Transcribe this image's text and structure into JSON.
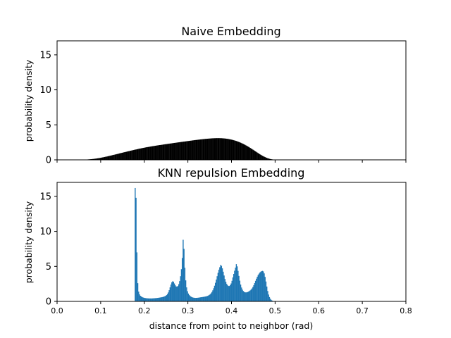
{
  "chart_data": [
    {
      "type": "bar",
      "title": "Naive Embedding",
      "xlabel": "",
      "ylabel": "probability density",
      "xlim": [
        0.0,
        0.8
      ],
      "ylim": [
        0,
        17
      ],
      "yticks": [
        0,
        5,
        10,
        15
      ],
      "xticks": [
        0.0,
        0.1,
        0.2,
        0.3,
        0.4,
        0.5,
        0.6,
        0.7,
        0.8
      ],
      "xtick_labels_visible": false,
      "grid": false,
      "bar_color": "#000000",
      "bin_width": 0.002,
      "x_start": 0.0,
      "values": [
        0,
        0,
        0,
        0,
        0,
        0,
        0,
        0,
        0,
        0,
        0,
        0,
        0,
        0,
        0,
        0,
        0,
        0,
        0,
        0,
        0,
        0,
        0,
        0.01,
        0.01,
        0.01,
        0.02,
        0.02,
        0.03,
        0.03,
        0.03,
        0.04,
        0.04,
        0.05,
        0.05,
        0.06,
        0.07,
        0.08,
        0.09,
        0.1,
        0.12,
        0.13,
        0.15,
        0.16,
        0.18,
        0.2,
        0.22,
        0.24,
        0.26,
        0.28,
        0.31,
        0.33,
        0.36,
        0.38,
        0.41,
        0.44,
        0.46,
        0.49,
        0.52,
        0.55,
        0.58,
        0.61,
        0.64,
        0.67,
        0.7,
        0.73,
        0.76,
        0.79,
        0.82,
        0.85,
        0.88,
        0.92,
        0.95,
        0.98,
        1.01,
        1.04,
        1.07,
        1.1,
        1.13,
        1.16,
        1.19,
        1.22,
        1.25,
        1.28,
        1.31,
        1.34,
        1.37,
        1.4,
        1.43,
        1.46,
        1.48,
        1.51,
        1.54,
        1.57,
        1.6,
        1.62,
        1.65,
        1.67,
        1.7,
        1.72,
        1.75,
        1.77,
        1.8,
        1.82,
        1.84,
        1.86,
        1.88,
        1.91,
        1.93,
        1.95,
        1.97,
        1.99,
        2.01,
        2.03,
        2.05,
        2.07,
        2.09,
        2.11,
        2.12,
        2.14,
        2.16,
        2.18,
        2.2,
        2.22,
        2.24,
        2.25,
        2.27,
        2.29,
        2.31,
        2.33,
        2.34,
        2.36,
        2.38,
        2.4,
        2.42,
        2.43,
        2.45,
        2.47,
        2.49,
        2.5,
        2.52,
        2.54,
        2.56,
        2.57,
        2.59,
        2.61,
        2.62,
        2.64,
        2.66,
        2.68,
        2.69,
        2.71,
        2.73,
        2.74,
        2.76,
        2.78,
        2.79,
        2.81,
        2.83,
        2.84,
        2.86,
        2.87,
        2.89,
        2.9,
        2.92,
        2.93,
        2.95,
        2.96,
        2.97,
        2.99,
        3.0,
        3.01,
        3.02,
        3.03,
        3.04,
        3.05,
        3.06,
        3.07,
        3.08,
        3.08,
        3.09,
        3.09,
        3.1,
        3.1,
        3.1,
        3.1,
        3.1,
        3.09,
        3.09,
        3.08,
        3.07,
        3.06,
        3.05,
        3.03,
        3.02,
        3.0,
        2.98,
        2.95,
        2.93,
        2.9,
        2.87,
        2.84,
        2.8,
        2.77,
        2.73,
        2.69,
        2.65,
        2.6,
        2.55,
        2.5,
        2.45,
        2.39,
        2.33,
        2.27,
        2.21,
        2.14,
        2.07,
        2.0,
        1.93,
        1.86,
        1.78,
        1.7,
        1.62,
        1.54,
        1.46,
        1.38,
        1.29,
        1.21,
        1.13,
        1.04,
        0.96,
        0.88,
        0.8,
        0.72,
        0.65,
        0.58,
        0.51,
        0.45,
        0.39,
        0.33,
        0.28,
        0.23,
        0.19,
        0.15,
        0.12,
        0.09,
        0.07,
        0.05,
        0.04,
        0.03,
        0.02,
        0.01,
        0.01,
        0,
        0,
        0,
        0,
        0,
        0,
        0,
        0,
        0,
        0,
        0,
        0,
        0,
        0,
        0,
        0,
        0,
        0,
        0,
        0,
        0,
        0,
        0,
        0,
        0,
        0,
        0,
        0,
        0,
        0,
        0,
        0,
        0,
        0,
        0,
        0,
        0,
        0,
        0,
        0,
        0,
        0,
        0,
        0,
        0,
        0,
        0,
        0,
        0,
        0,
        0,
        0,
        0,
        0,
        0,
        0,
        0,
        0,
        0,
        0,
        0,
        0,
        0,
        0,
        0,
        0,
        0,
        0,
        0,
        0,
        0,
        0,
        0,
        0,
        0,
        0,
        0,
        0,
        0,
        0,
        0,
        0,
        0,
        0,
        0,
        0,
        0,
        0,
        0,
        0,
        0,
        0,
        0,
        0,
        0,
        0,
        0,
        0,
        0,
        0,
        0,
        0,
        0,
        0,
        0,
        0,
        0,
        0,
        0,
        0,
        0,
        0,
        0,
        0,
        0,
        0,
        0,
        0,
        0,
        0,
        0,
        0,
        0,
        0,
        0,
        0,
        0,
        0,
        0,
        0,
        0,
        0
      ]
    },
    {
      "type": "bar",
      "title": "KNN repulsion Embedding",
      "xlabel": "distance from point to neighbor (rad)",
      "ylabel": "probability density",
      "xlim": [
        0.0,
        0.8
      ],
      "ylim": [
        0,
        17
      ],
      "yticks": [
        0,
        5,
        10,
        15
      ],
      "xticks": [
        0.0,
        0.1,
        0.2,
        0.3,
        0.4,
        0.5,
        0.6,
        0.7,
        0.8
      ],
      "xtick_labels": [
        "0.0",
        "0.1",
        "0.2",
        "0.3",
        "0.4",
        "0.5",
        "0.6",
        "0.7",
        "0.8"
      ],
      "grid": false,
      "bar_color": "#1f77b4",
      "bin_width": 0.002,
      "x_start": 0.0,
      "values": [
        0,
        0,
        0,
        0,
        0,
        0,
        0,
        0,
        0,
        0,
        0,
        0,
        0,
        0,
        0,
        0,
        0,
        0,
        0,
        0,
        0,
        0,
        0,
        0,
        0,
        0,
        0,
        0,
        0,
        0,
        0,
        0,
        0,
        0,
        0,
        0,
        0,
        0,
        0,
        0,
        0,
        0,
        0,
        0,
        0,
        0,
        0,
        0,
        0,
        0,
        0,
        0,
        0,
        0,
        0,
        0,
        0,
        0,
        0,
        0,
        0,
        0,
        0,
        0,
        0,
        0,
        0,
        0,
        0,
        0,
        0,
        0,
        0,
        0,
        0,
        0,
        0,
        0,
        0,
        0,
        0,
        0,
        0,
        0,
        0,
        0,
        0,
        0,
        0,
        16.2,
        14.8,
        7.0,
        2.6,
        1.4,
        1.0,
        0.8,
        0.7,
        0.62,
        0.56,
        0.52,
        0.49,
        0.47,
        0.45,
        0.44,
        0.43,
        0.42,
        0.42,
        0.42,
        0.42,
        0.43,
        0.44,
        0.45,
        0.46,
        0.47,
        0.48,
        0.5,
        0.52,
        0.54,
        0.56,
        0.58,
        0.61,
        0.64,
        0.68,
        0.73,
        0.8,
        0.9,
        1.05,
        1.28,
        1.6,
        2.0,
        2.4,
        2.72,
        2.88,
        2.8,
        2.56,
        2.3,
        2.14,
        2.1,
        2.2,
        2.46,
        2.9,
        3.6,
        4.6,
        6.2,
        8.8,
        7.5,
        4.8,
        3.0,
        2.0,
        1.45,
        1.12,
        0.92,
        0.78,
        0.68,
        0.61,
        0.56,
        0.53,
        0.51,
        0.5,
        0.5,
        0.51,
        0.52,
        0.54,
        0.56,
        0.58,
        0.6,
        0.62,
        0.64,
        0.66,
        0.68,
        0.71,
        0.74,
        0.78,
        0.84,
        0.92,
        1.02,
        1.16,
        1.34,
        1.58,
        1.88,
        2.24,
        2.66,
        3.12,
        3.6,
        4.08,
        4.52,
        4.88,
        5.2,
        5.08,
        4.72,
        4.24,
        3.7,
        3.2,
        2.8,
        2.5,
        2.3,
        2.2,
        2.2,
        2.32,
        2.56,
        2.94,
        3.42,
        3.92,
        4.38,
        4.82,
        5.32,
        5.0,
        4.36,
        3.64,
        2.96,
        2.4,
        1.98,
        1.68,
        1.48,
        1.36,
        1.3,
        1.28,
        1.3,
        1.34,
        1.4,
        1.48,
        1.58,
        1.7,
        1.86,
        2.06,
        2.32,
        2.62,
        2.94,
        3.24,
        3.52,
        3.76,
        3.96,
        4.12,
        4.24,
        4.32,
        4.36,
        4.28,
        4.0,
        3.5,
        2.84,
        2.12,
        1.48,
        0.98,
        0.62,
        0.38,
        0.22,
        0.12,
        0.06,
        0.03,
        0.01,
        0,
        0,
        0,
        0,
        0,
        0,
        0,
        0,
        0,
        0,
        0,
        0,
        0,
        0,
        0,
        0,
        0,
        0,
        0,
        0,
        0,
        0,
        0,
        0,
        0,
        0,
        0,
        0,
        0,
        0,
        0,
        0,
        0,
        0,
        0,
        0,
        0,
        0,
        0,
        0,
        0,
        0,
        0,
        0,
        0,
        0,
        0,
        0,
        0,
        0,
        0,
        0,
        0,
        0,
        0,
        0,
        0,
        0,
        0,
        0,
        0,
        0,
        0,
        0,
        0,
        0,
        0,
        0,
        0,
        0,
        0,
        0,
        0,
        0,
        0,
        0,
        0,
        0,
        0,
        0,
        0,
        0,
        0,
        0,
        0,
        0,
        0,
        0,
        0,
        0,
        0,
        0,
        0,
        0,
        0,
        0,
        0,
        0,
        0,
        0,
        0,
        0,
        0,
        0,
        0,
        0,
        0,
        0,
        0,
        0,
        0,
        0,
        0,
        0,
        0,
        0,
        0,
        0,
        0,
        0
      ]
    }
  ]
}
